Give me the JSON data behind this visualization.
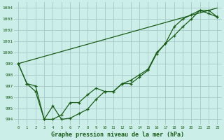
{
  "title": "Graphe pression niveau de la mer (hPa)",
  "background_color": "#cceee8",
  "grid_color": "#aacccc",
  "line_color": "#1a5c1a",
  "xlim": [
    -0.5,
    23.5
  ],
  "ylim": [
    993.5,
    1004.5
  ],
  "xticks": [
    0,
    1,
    2,
    3,
    4,
    5,
    6,
    7,
    8,
    9,
    10,
    11,
    12,
    13,
    14,
    15,
    16,
    17,
    18,
    19,
    20,
    21,
    22,
    23
  ],
  "yticks": [
    994,
    995,
    996,
    997,
    998,
    999,
    1000,
    1001,
    1002,
    1003,
    1004
  ],
  "series1_x": [
    0,
    1,
    2,
    3,
    4,
    5,
    6,
    7,
    8,
    9,
    10,
    11,
    12,
    13,
    14,
    15,
    16,
    17,
    18,
    19,
    20,
    21,
    22,
    23
  ],
  "series1_y": [
    999.0,
    997.2,
    997.0,
    994.0,
    995.2,
    994.0,
    994.1,
    994.5,
    994.9,
    995.8,
    996.5,
    996.5,
    997.2,
    997.2,
    997.8,
    998.4,
    999.9,
    1000.8,
    1002.3,
    1003.0,
    1003.4,
    1003.8,
    1003.5,
    1003.2
  ],
  "series2_x": [
    0,
    1,
    2,
    3,
    4,
    5,
    6,
    7,
    8,
    9,
    10,
    11,
    12,
    13,
    14,
    15,
    16,
    17,
    18,
    19,
    20,
    21,
    22,
    23
  ],
  "series2_y": [
    999.0,
    997.2,
    996.5,
    994.0,
    994.0,
    994.4,
    995.5,
    995.5,
    996.2,
    996.8,
    996.5,
    996.5,
    997.2,
    997.5,
    998.0,
    998.5,
    1000.0,
    1000.8,
    1001.5,
    1002.3,
    1003.0,
    1003.8,
    1003.8,
    1003.2
  ],
  "series3_x": [
    0,
    23
  ],
  "series3_y": [
    999.0,
    1004.0
  ]
}
